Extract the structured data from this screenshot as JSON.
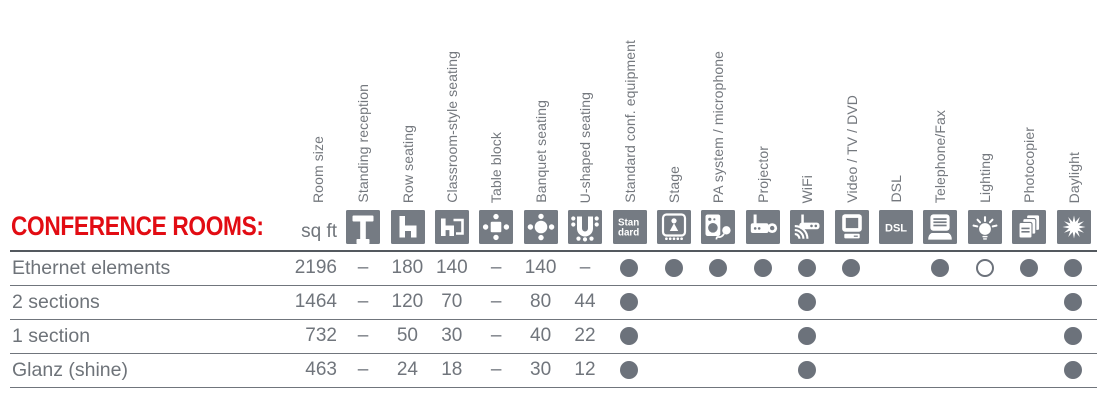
{
  "title": "CONFERENCE ROOMS:",
  "colors": {
    "accent_red": "#e20c13",
    "icon_gray": "#757b83",
    "dot_gray": "#6c727b",
    "text_gray": "#70757b"
  },
  "table": {
    "unit_label": "sq ft",
    "columns": [
      {
        "key": "room_size",
        "label": "Room size",
        "icon": null
      },
      {
        "key": "standing_reception",
        "label": "Standing reception",
        "icon": "standing-reception-icon"
      },
      {
        "key": "row_seating",
        "label": "Row seating",
        "icon": "row-seating-icon"
      },
      {
        "key": "classroom_style_seating",
        "label": "Classroom-style seating",
        "icon": "classroom-seating-icon"
      },
      {
        "key": "table_block",
        "label": "Table block",
        "icon": "table-block-icon"
      },
      {
        "key": "banquet_seating",
        "label": "Banquet seating",
        "icon": "banquet-seating-icon"
      },
      {
        "key": "u_shaped_seating",
        "label": "U-shaped seating",
        "icon": "u-shaped-seating-icon"
      },
      {
        "key": "standard_conf_equipment",
        "label": "Standard conf. equipment",
        "icon": "standard-equipment-icon",
        "icon_text": [
          "Stan",
          "dard"
        ]
      },
      {
        "key": "stage",
        "label": "Stage",
        "icon": "stage-icon"
      },
      {
        "key": "pa_system_microphone",
        "label": "PA system / microphone",
        "icon": "pa-system-microphone-icon"
      },
      {
        "key": "projector",
        "label": "Projector",
        "icon": "projector-icon"
      },
      {
        "key": "wifi",
        "label": "WiFi",
        "icon": "wifi-router-icon"
      },
      {
        "key": "video_tv_dvd",
        "label": "Video / TV / DVD",
        "icon": "video-tv-dvd-icon"
      },
      {
        "key": "dsl",
        "label": "DSL",
        "icon": "dsl-icon",
        "icon_text": [
          "DSL"
        ]
      },
      {
        "key": "telephone_fax",
        "label": "Telephone/Fax",
        "icon": "telephone-fax-icon"
      },
      {
        "key": "lighting",
        "label": "Lighting",
        "icon": "lighting-bulb-icon"
      },
      {
        "key": "photocopier",
        "label": "Photocopier",
        "icon": "photocopier-icon"
      },
      {
        "key": "daylight",
        "label": "Daylight",
        "icon": "daylight-sun-icon"
      }
    ],
    "cell_legend": {
      "dot": "feature available (filled dot)",
      "circle": "feature optional (open dot)",
      "–": "not applicable",
      "": "not available"
    },
    "rows": [
      {
        "label": "Ethernet elements",
        "cells": [
          "2196",
          "–",
          "180",
          "140",
          "–",
          "140",
          "–",
          "dot",
          "dot",
          "dot",
          "dot",
          "dot",
          "dot",
          "",
          "dot",
          "circle",
          "dot",
          "dot"
        ]
      },
      {
        "label": "2 sections",
        "cells": [
          "1464",
          "–",
          "120",
          "70",
          "–",
          "80",
          "44",
          "dot",
          "",
          "",
          "",
          "dot",
          "",
          "",
          "",
          "",
          "",
          "dot"
        ]
      },
      {
        "label": "1 section",
        "cells": [
          "732",
          "–",
          "50",
          "30",
          "–",
          "40",
          "22",
          "dot",
          "",
          "",
          "",
          "dot",
          "",
          "",
          "",
          "",
          "",
          "dot"
        ]
      },
      {
        "label": "Glanz (shine)",
        "cells": [
          "463",
          "–",
          "24",
          "18",
          "–",
          "30",
          "12",
          "dot",
          "",
          "",
          "",
          "dot",
          "",
          "",
          "",
          "",
          "",
          "dot"
        ]
      }
    ]
  }
}
